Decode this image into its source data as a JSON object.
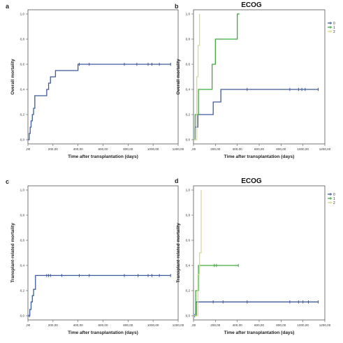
{
  "colors": {
    "stratum0": "#3d5a9c",
    "stratum1": "#3eaa3e",
    "stratum2": "#d9d98c",
    "overall": "#3d5a9c",
    "axis": "#555555"
  },
  "chart_data": [
    {
      "panel": "a",
      "type": "line",
      "step": true,
      "title": "",
      "xlabel": "Time after transplantation (days)",
      "ylabel": "Overall mortality",
      "xlim": [
        0,
        1200
      ],
      "ylim": [
        0,
        1
      ],
      "xticks": [
        ",00",
        "200,00",
        "400,00",
        "600,00",
        "800,00",
        "1000,00",
        "1200,00"
      ],
      "yticks": [
        "0,0",
        "0,2",
        "0,4",
        "0,6",
        "0,8",
        "1,0"
      ],
      "legend": [],
      "series": [
        {
          "name": "",
          "color_key": "overall",
          "x": [
            0,
            10,
            18,
            25,
            35,
            45,
            55,
            150,
            165,
            180,
            220,
            400,
            420,
            1140
          ],
          "y": [
            0,
            0.05,
            0.1,
            0.15,
            0.2,
            0.25,
            0.35,
            0.4,
            0.45,
            0.5,
            0.55,
            0.6,
            0.6,
            0.6
          ],
          "censored": [
            [
              410,
              0.6
            ],
            [
              490,
              0.6
            ],
            [
              770,
              0.6
            ],
            [
              870,
              0.6
            ],
            [
              960,
              0.6
            ],
            [
              990,
              0.6
            ],
            [
              1050,
              0.6
            ],
            [
              1140,
              0.6
            ]
          ]
        }
      ]
    },
    {
      "panel": "b",
      "type": "line",
      "step": true,
      "title": "ECOG",
      "xlabel": "Time after transplantation (days)",
      "ylabel": "Overall mortality",
      "xlim": [
        0,
        1200
      ],
      "ylim": [
        0,
        1
      ],
      "xticks": [
        ",00",
        "200,00",
        "400,00",
        "600,00",
        "800,00",
        "1000,00",
        "1200,00"
      ],
      "yticks": [
        "0,0",
        "0,2",
        "0,4",
        "0,6",
        "0,8",
        "1,0"
      ],
      "legend": [
        "0",
        "1",
        "2"
      ],
      "series": [
        {
          "name": "0",
          "color_key": "stratum0",
          "x": [
            0,
            15,
            40,
            180,
            250,
            1140
          ],
          "y": [
            0,
            0.1,
            0.2,
            0.3,
            0.4,
            0.4
          ],
          "censored": [
            [
              490,
              0.4
            ],
            [
              880,
              0.4
            ],
            [
              960,
              0.4
            ],
            [
              990,
              0.4
            ],
            [
              1020,
              0.4
            ],
            [
              1140,
              0.4
            ]
          ]
        },
        {
          "name": "1",
          "color_key": "stratum1",
          "x": [
            0,
            15,
            45,
            170,
            200,
            400,
            420
          ],
          "y": [
            0,
            0.2,
            0.4,
            0.6,
            0.8,
            1.0,
            1.0
          ],
          "censored": []
        },
        {
          "name": "2",
          "color_key": "stratum2",
          "x": [
            0,
            30,
            42,
            55
          ],
          "y": [
            0,
            0.5,
            0.75,
            1.0
          ],
          "censored": []
        }
      ]
    },
    {
      "panel": "c",
      "type": "line",
      "step": true,
      "title": "",
      "xlabel": "Time after transplantation (days)",
      "ylabel": "Transplant-related mortality",
      "xlim": [
        0,
        1200
      ],
      "ylim": [
        0,
        1
      ],
      "xticks": [
        ",00",
        "200,00",
        "400,00",
        "600,00",
        "800,00",
        "1000,00",
        "1200,00"
      ],
      "yticks": [
        "0,0",
        "0,2",
        "0,4",
        "0,6",
        "0,8",
        "1,0"
      ],
      "legend": [],
      "series": [
        {
          "name": "",
          "color_key": "overall",
          "x": [
            0,
            15,
            25,
            35,
            45,
            60,
            1140
          ],
          "y": [
            0,
            0.05,
            0.11,
            0.16,
            0.21,
            0.32,
            0.32
          ],
          "censored": [
            [
              12,
              0.0
            ],
            [
              150,
              0.32
            ],
            [
              165,
              0.32
            ],
            [
              180,
              0.32
            ],
            [
              270,
              0.32
            ],
            [
              410,
              0.32
            ],
            [
              490,
              0.32
            ],
            [
              770,
              0.32
            ],
            [
              880,
              0.32
            ],
            [
              960,
              0.32
            ],
            [
              990,
              0.32
            ],
            [
              1050,
              0.32
            ],
            [
              1140,
              0.32
            ]
          ]
        }
      ]
    },
    {
      "panel": "d",
      "type": "line",
      "step": true,
      "title": "ECOG",
      "xlabel": "Time after transplantation (days)",
      "ylabel": "Transplant-related mortality",
      "xlim": [
        0,
        1200
      ],
      "ylim": [
        0,
        1
      ],
      "xticks": [
        ",00",
        "200,00",
        "400,00",
        "600,00",
        "800,00",
        "1000,00",
        "1200,00"
      ],
      "yticks": [
        "0,0",
        "0,2",
        "0,4",
        "0,6",
        "0,8",
        "1,0"
      ],
      "legend": [
        "0",
        "1",
        "2"
      ],
      "series": [
        {
          "name": "0",
          "color_key": "stratum0",
          "x": [
            0,
            25,
            1140
          ],
          "y": [
            0,
            0.11,
            0.11
          ],
          "censored": [
            [
              10,
              0.0
            ],
            [
              180,
              0.11
            ],
            [
              270,
              0.11
            ],
            [
              490,
              0.11
            ],
            [
              880,
              0.11
            ],
            [
              960,
              0.11
            ],
            [
              1000,
              0.11
            ],
            [
              1050,
              0.11
            ],
            [
              1140,
              0.11
            ]
          ]
        },
        {
          "name": "1",
          "color_key": "stratum1",
          "x": [
            0,
            20,
            45,
            410
          ],
          "y": [
            0,
            0.2,
            0.4,
            0.4
          ],
          "censored": [
            [
              190,
              0.4
            ],
            [
              210,
              0.4
            ],
            [
              410,
              0.4
            ]
          ]
        },
        {
          "name": "2",
          "color_key": "stratum2",
          "x": [
            0,
            40,
            55,
            70
          ],
          "y": [
            0,
            0.33,
            0.5,
            1.0
          ],
          "censored": []
        }
      ]
    }
  ]
}
